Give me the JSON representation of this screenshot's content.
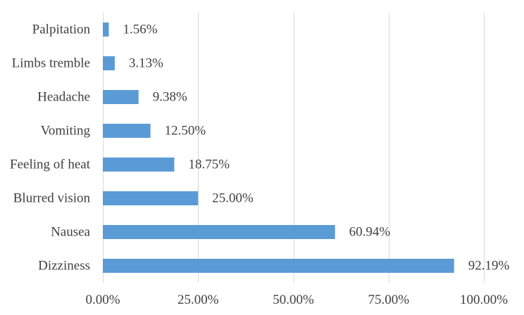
{
  "chart_data": {
    "type": "bar",
    "orientation": "horizontal",
    "categories": [
      "Dizziness",
      "Nausea",
      "Blurred vision",
      "Feeling of heat",
      "Vomiting",
      "Headache",
      "Limbs tremble",
      "Palpitation"
    ],
    "values": [
      92.19,
      60.94,
      25.0,
      18.75,
      12.5,
      9.38,
      3.13,
      1.56
    ],
    "value_labels": [
      "92.19%",
      "60.94%",
      "25.00%",
      "18.75%",
      "12.50%",
      "9.38%",
      "3.13%",
      "1.56%"
    ],
    "xlim": [
      0,
      100
    ],
    "x_ticks": [
      0,
      25,
      50,
      75,
      100
    ],
    "x_tick_labels": [
      "0.00%",
      "25.00%",
      "50.00%",
      "75.00%",
      "100.00%"
    ],
    "grid": true,
    "legend": "none",
    "bar_color": "#5b9bd5"
  }
}
